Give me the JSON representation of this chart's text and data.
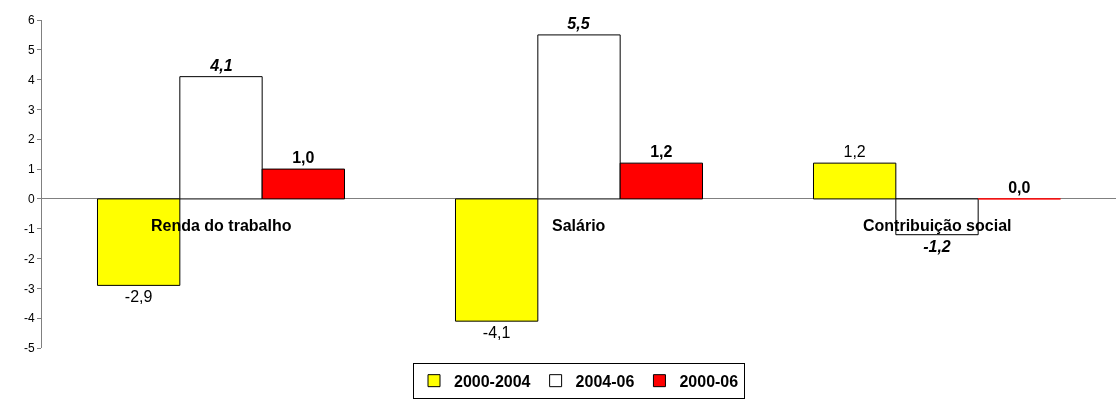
{
  "chart_data": {
    "type": "bar",
    "categories": [
      "Renda do trabalho",
      "Salário",
      "Contribuição social"
    ],
    "series": [
      {
        "name": "2000-2004",
        "color": "#ffff00",
        "values": [
          -2.9,
          -4.1,
          1.2
        ],
        "value_labels": [
          "-2,9",
          "-4,1",
          "1,2"
        ]
      },
      {
        "name": "2004-06",
        "color": "#ffffff",
        "values": [
          4.1,
          5.5,
          -1.2
        ],
        "value_labels": [
          "4,1",
          "5,5",
          "-1,2"
        ]
      },
      {
        "name": "2000-06",
        "color": "#ff0000",
        "values": [
          1.0,
          1.2,
          0.0
        ],
        "value_labels": [
          "1,0",
          "1,2",
          "0,0"
        ]
      }
    ],
    "ylim": [
      -5,
      6
    ],
    "yticks": [
      -5,
      -4,
      -3,
      -2,
      -1,
      0,
      1,
      2,
      3,
      4,
      5,
      6
    ],
    "grid": false,
    "legend": "bottom"
  }
}
